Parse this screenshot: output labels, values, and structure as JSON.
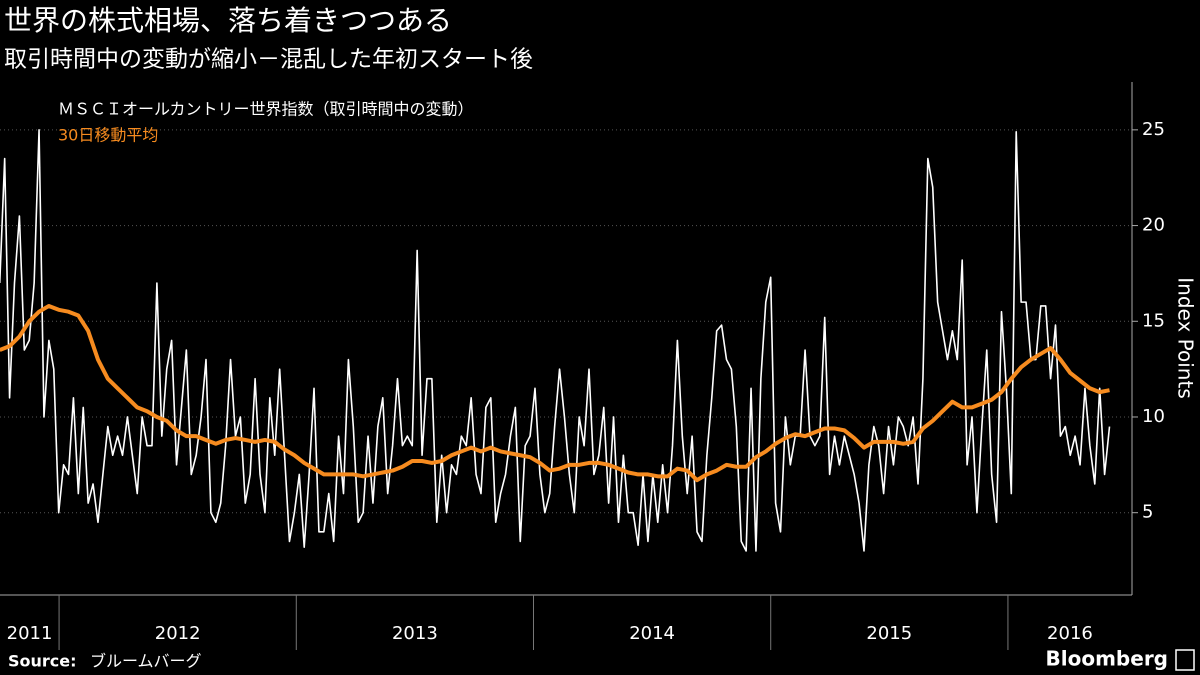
{
  "chart_data": {
    "type": "line",
    "title": "世界の株式相場、落ち着きつつある",
    "subtitle": "取引時間中の変動が縮小－混乱した年初スタート後",
    "y_label": "Index Points",
    "source_label": "Source:",
    "source": "ブルームバーグ",
    "logo": "Bloomberg",
    "xlim": [
      2011.751,
      2016.523
    ],
    "xticks": [
      2011,
      2012,
      2013,
      2014,
      2015,
      2016
    ],
    "ylim": [
      0.7,
      27.5
    ],
    "yticks": [
      5,
      10,
      15,
      20,
      25
    ],
    "grid": true,
    "background": "#000000",
    "series": [
      {
        "name": "ＭＳＣＩオールカントリー世界指数（取引時間中の変動）",
        "color": "#ffffff",
        "x": [
          2011.75,
          2011.7707,
          2011.7914,
          2011.8121,
          2011.8328,
          2011.8535,
          2011.8742,
          2011.8949,
          2011.9156,
          2011.9363,
          2011.957,
          2011.9777,
          2011.9984,
          2012.0191,
          2012.0398,
          2012.0605,
          2012.0812,
          2012.1019,
          2012.1226,
          2012.1433,
          2012.164,
          2012.1847,
          2012.2054,
          2012.2261,
          2012.2468,
          2012.2675,
          2012.2882,
          2012.3089,
          2012.3296,
          2012.3503,
          2012.371,
          2012.3917,
          2012.4124,
          2012.4331,
          2012.4538,
          2012.4745,
          2012.4952,
          2012.5159,
          2012.5366,
          2012.5573,
          2012.578,
          2012.5987,
          2012.6194,
          2012.6401,
          2012.6608,
          2012.6815,
          2012.7022,
          2012.7229,
          2012.7436,
          2012.7643,
          2012.785,
          2012.8057,
          2012.8264,
          2012.8471,
          2012.8678,
          2012.8885,
          2012.9092,
          2012.9299,
          2012.9506,
          2012.9713,
          2012.992,
          2013.0127,
          2013.0334,
          2013.0541,
          2013.0748,
          2013.0955,
          2013.1162,
          2013.1369,
          2013.1576,
          2013.1783,
          2013.199,
          2013.2197,
          2013.2404,
          2013.2611,
          2013.2818,
          2013.3025,
          2013.3232,
          2013.3439,
          2013.3646,
          2013.3853,
          2013.406,
          2013.4267,
          2013.4474,
          2013.4681,
          2013.4888,
          2013.5095,
          2013.5302,
          2013.5509,
          2013.5716,
          2013.5923,
          2013.613,
          2013.6337,
          2013.6544,
          2013.6751,
          2013.6958,
          2013.7165,
          2013.7372,
          2013.7579,
          2013.7786,
          2013.7993,
          2013.82,
          2013.8407,
          2013.8614,
          2013.8821,
          2013.9028,
          2013.9235,
          2013.9442,
          2013.9649,
          2013.9856,
          2014.0063,
          2014.027,
          2014.0477,
          2014.0684,
          2014.0891,
          2014.1098,
          2014.1305,
          2014.1512,
          2014.1719,
          2014.1926,
          2014.2133,
          2014.234,
          2014.2547,
          2014.2754,
          2014.2961,
          2014.3168,
          2014.3375,
          2014.3582,
          2014.3789,
          2014.3996,
          2014.4203,
          2014.441,
          2014.4617,
          2014.4824,
          2014.5031,
          2014.5238,
          2014.5445,
          2014.5652,
          2014.5859,
          2014.6066,
          2014.6273,
          2014.648,
          2014.6687,
          2014.6894,
          2014.7101,
          2014.7308,
          2014.7515,
          2014.7722,
          2014.7929,
          2014.8136,
          2014.8343,
          2014.855,
          2014.8757,
          2014.8964,
          2014.9171,
          2014.9378,
          2014.9585,
          2014.9792,
          2014.9999,
          2015.0206,
          2015.0413,
          2015.062,
          2015.0827,
          2015.1034,
          2015.1241,
          2015.1448,
          2015.1655,
          2015.1862,
          2015.2069,
          2015.2276,
          2015.2483,
          2015.269,
          2015.2897,
          2015.3104,
          2015.3311,
          2015.3518,
          2015.3725,
          2015.3932,
          2015.4139,
          2015.4346,
          2015.4553,
          2015.476,
          2015.4967,
          2015.5174,
          2015.5381,
          2015.5588,
          2015.5795,
          2015.6002,
          2015.6209,
          2015.6416,
          2015.6623,
          2015.683,
          2015.7037,
          2015.7244,
          2015.7451,
          2015.7658,
          2015.7865,
          2015.8072,
          2015.8279,
          2015.8486,
          2015.8693,
          2015.89,
          2015.9107,
          2015.9314,
          2015.9521,
          2015.9728,
          2015.9935,
          2016.0142,
          2016.0349,
          2016.0556,
          2016.0763,
          2016.097,
          2016.1177,
          2016.1384,
          2016.1591,
          2016.1798,
          2016.2005,
          2016.2212,
          2016.2419,
          2016.2626,
          2016.2833,
          2016.304,
          2016.3247,
          2016.3454,
          2016.3661,
          2016.3868,
          2016.4075,
          2016.4282
        ],
        "values": [
          17,
          23.5,
          11,
          17,
          20.5,
          13.5,
          14,
          17,
          25,
          10,
          14,
          12.5,
          5,
          7.5,
          7,
          11,
          6,
          10.5,
          5.5,
          6.5,
          4.5,
          7,
          9.5,
          8,
          9,
          8,
          10,
          8,
          6,
          10,
          8.5,
          8.5,
          17,
          9,
          12.5,
          14,
          7.5,
          10.5,
          13.5,
          7,
          8,
          10,
          13,
          5,
          4.5,
          5.5,
          8.5,
          13,
          9,
          10,
          5.5,
          7,
          12,
          7,
          5,
          11,
          8,
          12.5,
          8,
          3.5,
          5,
          7,
          3.2,
          7,
          11.5,
          4,
          4,
          6,
          3.5,
          9,
          6,
          13,
          9.5,
          4.5,
          5,
          9,
          5.5,
          9.5,
          11,
          6,
          8.5,
          12,
          8.5,
          9,
          8.5,
          18.7,
          8,
          12,
          12,
          4.5,
          8,
          5,
          7.5,
          7,
          9,
          8.5,
          11,
          7,
          6,
          10.5,
          11,
          4.5,
          6,
          7,
          9,
          10.5,
          3.5,
          8.5,
          9,
          11.5,
          7,
          5,
          6,
          9.5,
          12.5,
          10,
          7,
          5,
          10,
          8.5,
          12.5,
          7,
          8,
          10.5,
          5.5,
          10,
          4.5,
          8,
          5,
          5,
          3.3,
          7,
          3.5,
          7,
          4.5,
          7.5,
          5,
          8.5,
          14,
          9,
          6,
          9,
          4,
          3.5,
          8,
          11,
          14.5,
          14.8,
          13,
          12.5,
          9.5,
          3.5,
          3,
          11.5,
          3,
          12,
          16,
          17.3,
          5.5,
          4,
          10,
          7.5,
          9,
          9,
          13.5,
          9,
          8.5,
          9,
          15.2,
          7,
          9,
          7.5,
          9,
          8,
          7,
          5.5,
          3,
          7.5,
          9.5,
          8.5,
          6,
          9.5,
          7.5,
          10,
          9.5,
          8.5,
          10,
          6.5,
          12,
          23.5,
          22,
          16,
          14.5,
          13,
          14.5,
          13,
          18.2,
          7.5,
          10,
          5,
          9.5,
          13.5,
          7,
          4.5,
          15.5,
          11.5,
          6,
          24.9,
          16,
          16,
          13,
          13,
          15.8,
          15.8,
          12,
          14.8,
          9,
          9.5,
          8,
          9,
          7.5,
          11.5,
          8.5,
          6.5,
          11.5,
          7,
          9.5
        ]
      },
      {
        "name": "30日移動平均",
        "color": "#f68b1f",
        "x": [
          2011.75,
          2011.7914,
          2011.8328,
          2011.8742,
          2011.9156,
          2011.957,
          2011.9984,
          2012.0398,
          2012.0812,
          2012.1226,
          2012.164,
          2012.2054,
          2012.2468,
          2012.2882,
          2012.3296,
          2012.371,
          2012.4124,
          2012.4538,
          2012.4952,
          2012.5366,
          2012.578,
          2012.6194,
          2012.6608,
          2012.7022,
          2012.7436,
          2012.785,
          2012.8264,
          2012.8678,
          2012.9092,
          2012.9506,
          2012.992,
          2013.0334,
          2013.0748,
          2013.1162,
          2013.1576,
          2013.199,
          2013.2404,
          2013.2818,
          2013.3232,
          2013.3646,
          2013.406,
          2013.4474,
          2013.4888,
          2013.5302,
          2013.5716,
          2013.613,
          2013.6544,
          2013.6958,
          2013.7372,
          2013.7786,
          2013.82,
          2013.8614,
          2013.9028,
          2013.9442,
          2013.9856,
          2014.027,
          2014.0684,
          2014.1098,
          2014.1512,
          2014.1926,
          2014.234,
          2014.2754,
          2014.3168,
          2014.3582,
          2014.3996,
          2014.441,
          2014.4824,
          2014.5238,
          2014.5652,
          2014.6066,
          2014.648,
          2014.6894,
          2014.7308,
          2014.7722,
          2014.8136,
          2014.855,
          2014.8964,
          2014.9378,
          2014.9792,
          2015.0206,
          2015.062,
          2015.1034,
          2015.1448,
          2015.1862,
          2015.2276,
          2015.269,
          2015.3104,
          2015.3518,
          2015.3932,
          2015.4346,
          2015.476,
          2015.5174,
          2015.5588,
          2015.6002,
          2015.6416,
          2015.683,
          2015.7244,
          2015.7658,
          2015.8072,
          2015.8486,
          2015.89,
          2015.9314,
          2015.9728,
          2016.0142,
          2016.0556,
          2016.097,
          2016.1384,
          2016.1798,
          2016.2212,
          2016.2626,
          2016.304,
          2016.3454,
          2016.3868,
          2016.4282
        ],
        "values": [
          13.5,
          13.7,
          14.2,
          15,
          15.5,
          15.8,
          15.6,
          15.5,
          15.3,
          14.5,
          13,
          12,
          11.5,
          11,
          10.5,
          10.3,
          10,
          9.8,
          9.3,
          9,
          9,
          8.8,
          8.6,
          8.8,
          8.9,
          8.8,
          8.7,
          8.8,
          8.7,
          8.3,
          8,
          7.6,
          7.3,
          7,
          7,
          7,
          7,
          6.9,
          7,
          7.1,
          7.2,
          7.4,
          7.7,
          7.7,
          7.6,
          7.7,
          8,
          8.2,
          8.4,
          8.2,
          8.4,
          8.2,
          8.1,
          8,
          7.9,
          7.6,
          7.2,
          7.3,
          7.5,
          7.5,
          7.6,
          7.6,
          7.5,
          7.3,
          7.1,
          7,
          7,
          6.9,
          6.9,
          7.3,
          7.2,
          6.7,
          7,
          7.2,
          7.5,
          7.4,
          7.4,
          7.9,
          8.2,
          8.6,
          8.9,
          9.1,
          9,
          9.2,
          9.4,
          9.4,
          9.3,
          8.9,
          8.4,
          8.7,
          8.7,
          8.7,
          8.6,
          8.7,
          9.4,
          9.8,
          10.3,
          10.8,
          10.5,
          10.5,
          10.7,
          10.9,
          11.3,
          12,
          12.6,
          13,
          13.3,
          13.6,
          13,
          12.3,
          11.9,
          11.5,
          11.3,
          11.4
        ]
      }
    ]
  }
}
